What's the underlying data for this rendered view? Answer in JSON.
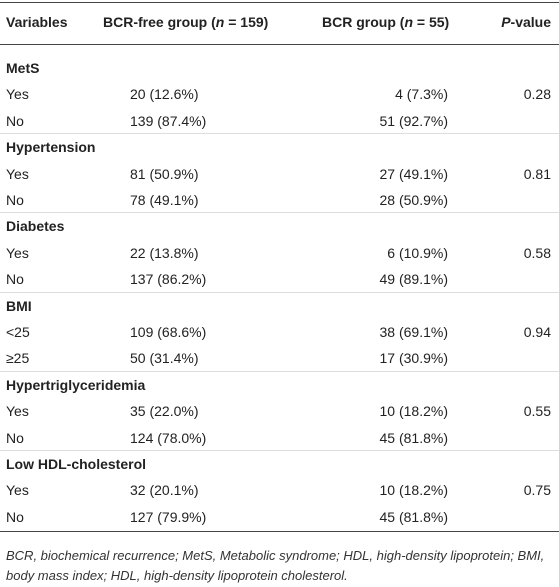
{
  "table": {
    "header": {
      "variables": "Variables",
      "free": {
        "pre": "BCR-free group (",
        "italic": "n",
        "post": " = 159)"
      },
      "bcr": {
        "pre": "BCR group (",
        "italic": "n",
        "post": " = 55)"
      },
      "p": {
        "italic": "P",
        "post": "-value"
      }
    },
    "sections": [
      {
        "name": "MetS",
        "p": "0.28",
        "rows": [
          [
            "Yes",
            "20 (12.6%)",
            "4 (7.3%)"
          ],
          [
            "No",
            "139 (87.4%)",
            "51 (92.7%)"
          ]
        ]
      },
      {
        "name": "Hypertension",
        "p": "0.81",
        "rows": [
          [
            "Yes",
            "81 (50.9%)",
            "27 (49.1%)"
          ],
          [
            "No",
            "78 (49.1%)",
            "28 (50.9%)"
          ]
        ]
      },
      {
        "name": "Diabetes",
        "p": "0.58",
        "rows": [
          [
            "Yes",
            "22 (13.8%)",
            "6 (10.9%)"
          ],
          [
            "No",
            "137 (86.2%)",
            "49 (89.1%)"
          ]
        ]
      },
      {
        "name": "BMI",
        "p": "0.94",
        "rows": [
          [
            "<25",
            "109 (68.6%)",
            "38 (69.1%)"
          ],
          [
            "≥25",
            "50 (31.4%)",
            "17 (30.9%)"
          ]
        ]
      },
      {
        "name": "Hypertriglyceridemia",
        "p": "0.55",
        "rows": [
          [
            "Yes",
            "35 (22.0%)",
            "10 (18.2%)"
          ],
          [
            "No",
            "124 (78.0%)",
            "45 (81.8%)"
          ]
        ]
      },
      {
        "name": "Low HDL-cholesterol",
        "p": "0.75",
        "rows": [
          [
            "Yes",
            "32 (20.1%)",
            "10 (18.2%)"
          ],
          [
            "No",
            "127 (79.9%)",
            "45 (81.8%)"
          ]
        ]
      }
    ],
    "footnote": "BCR, biochemical recurrence; MetS, Metabolic syndrome; HDL, high-density lipoprotein; BMI, body mass index; HDL, high-density lipoprotein cholesterol."
  }
}
